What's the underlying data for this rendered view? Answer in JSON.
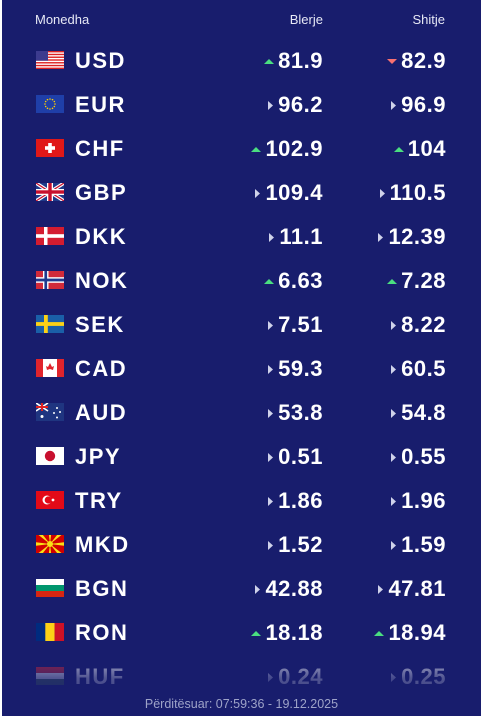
{
  "header": {
    "currency": "Monedha",
    "buy": "Blerje",
    "sell": "Shitje"
  },
  "rows": [
    {
      "code": "USD",
      "buy": "81.9",
      "buy_trend": "up",
      "sell": "82.9",
      "sell_trend": "down"
    },
    {
      "code": "EUR",
      "buy": "96.2",
      "buy_trend": "flat",
      "sell": "96.9",
      "sell_trend": "flat"
    },
    {
      "code": "CHF",
      "buy": "102.9",
      "buy_trend": "up",
      "sell": "104",
      "sell_trend": "up"
    },
    {
      "code": "GBP",
      "buy": "109.4",
      "buy_trend": "flat",
      "sell": "110.5",
      "sell_trend": "flat"
    },
    {
      "code": "DKK",
      "buy": "11.1",
      "buy_trend": "flat",
      "sell": "12.39",
      "sell_trend": "flat"
    },
    {
      "code": "NOK",
      "buy": "6.63",
      "buy_trend": "up",
      "sell": "7.28",
      "sell_trend": "up"
    },
    {
      "code": "SEK",
      "buy": "7.51",
      "buy_trend": "flat",
      "sell": "8.22",
      "sell_trend": "flat"
    },
    {
      "code": "CAD",
      "buy": "59.3",
      "buy_trend": "flat",
      "sell": "60.5",
      "sell_trend": "flat"
    },
    {
      "code": "AUD",
      "buy": "53.8",
      "buy_trend": "flat",
      "sell": "54.8",
      "sell_trend": "flat"
    },
    {
      "code": "JPY",
      "buy": "0.51",
      "buy_trend": "flat",
      "sell": "0.55",
      "sell_trend": "flat"
    },
    {
      "code": "TRY",
      "buy": "1.86",
      "buy_trend": "flat",
      "sell": "1.96",
      "sell_trend": "flat"
    },
    {
      "code": "MKD",
      "buy": "1.52",
      "buy_trend": "flat",
      "sell": "1.59",
      "sell_trend": "flat"
    },
    {
      "code": "BGN",
      "buy": "42.88",
      "buy_trend": "flat",
      "sell": "47.81",
      "sell_trend": "flat"
    },
    {
      "code": "RON",
      "buy": "18.18",
      "buy_trend": "up",
      "sell": "18.94",
      "sell_trend": "up"
    },
    {
      "code": "HUF",
      "buy": "0.24",
      "buy_trend": "flat",
      "sell": "0.25",
      "sell_trend": "flat"
    }
  ],
  "footer": "Përditësuar: 07:59:36 - 19.12.2025"
}
